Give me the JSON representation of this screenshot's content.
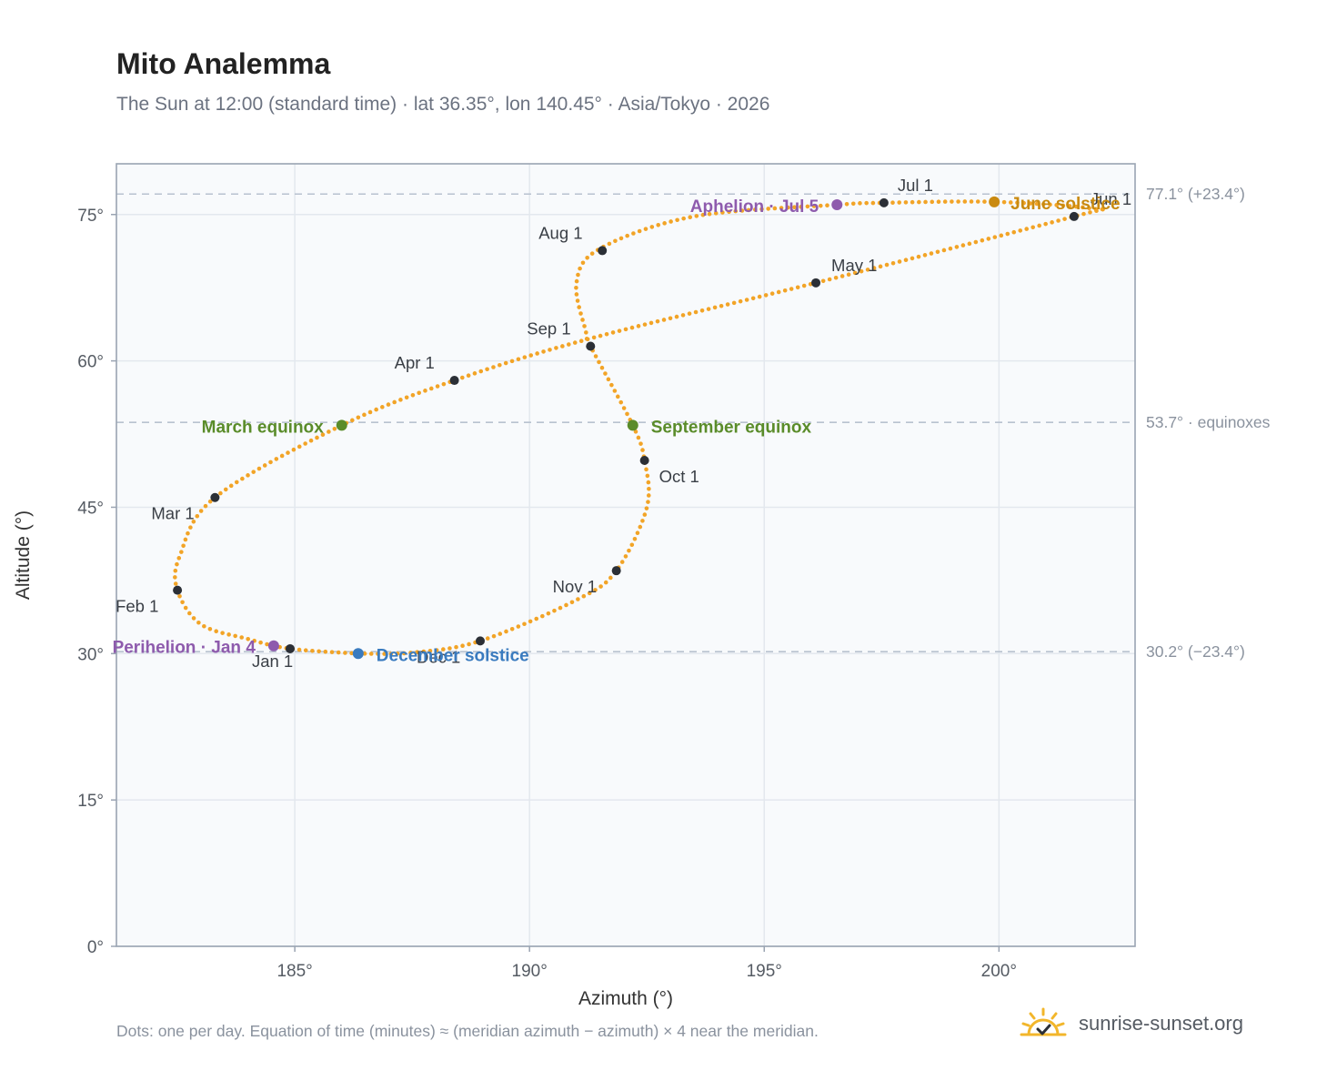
{
  "title": "Mito Analemma",
  "subtitle": "The Sun at 12:00 (standard time) · lat 36.35°, lon 140.45° · Asia/Tokyo · 2026",
  "footnote": "Dots: one per day. Equation of time (minutes) ≈ (meridian azimuth − azimuth) × 4 near the meridian.",
  "brand": {
    "name": "sunrise-sunset.org",
    "logo_icon": "sun-check-icon"
  },
  "colors": {
    "path": "#f2a427",
    "month_marker": "#2b2f36",
    "equinox": "#5a8c2a",
    "june_solstice": "#c98a10",
    "december_solstice": "#3a7bbf",
    "apsis": "#8e5bad",
    "reference_line": "#b8c2cf",
    "plot_background": "#f8fafc"
  },
  "chart_data": {
    "type": "scatter",
    "xlabel": "Azimuth (°)",
    "ylabel": "Altitude (°)",
    "xlim": [
      181.2,
      202.9
    ],
    "ylim": [
      0,
      80.2
    ],
    "xticks": [
      185,
      190,
      195,
      200
    ],
    "xtick_labels": [
      "185°",
      "190°",
      "195°",
      "200°"
    ],
    "yticks": [
      0,
      15,
      30,
      45,
      60,
      75
    ],
    "ytick_labels": [
      "0°",
      "15°",
      "30°",
      "45°",
      "60°",
      "75°"
    ],
    "grid": true,
    "reference_lines": [
      {
        "y": 77.1,
        "label": "77.1° (+23.4°)"
      },
      {
        "y": 53.7,
        "label": "53.7° · equinoxes"
      },
      {
        "y": 30.2,
        "label": "30.2° (−23.4°)"
      }
    ],
    "series": [
      {
        "type": "line",
        "points_per_segment_note": "one dot per day",
        "path_keypoints": [
          [
            186.35,
            30.0
          ],
          [
            184.9,
            30.5
          ],
          [
            184.0,
            31.5
          ],
          [
            183.0,
            33.0
          ],
          [
            182.5,
            36.5
          ],
          [
            182.55,
            40.0
          ],
          [
            183.3,
            46.0
          ],
          [
            186.0,
            53.4
          ],
          [
            188.4,
            58.0
          ],
          [
            191.3,
            62.3
          ],
          [
            196.1,
            68.0
          ],
          [
            201.6,
            74.8
          ],
          [
            202.0,
            75.6
          ],
          [
            199.9,
            76.3
          ],
          [
            197.55,
            76.2
          ],
          [
            196.55,
            76.0
          ],
          [
            193.5,
            74.8
          ],
          [
            191.5,
            71.5
          ],
          [
            191.0,
            68.0
          ],
          [
            191.2,
            63.0
          ],
          [
            191.3,
            61.5
          ],
          [
            192.2,
            53.4
          ],
          [
            192.45,
            49.8
          ],
          [
            192.5,
            45.0
          ],
          [
            191.85,
            38.5
          ],
          [
            191.0,
            35.5
          ],
          [
            188.95,
            31.3
          ],
          [
            187.5,
            30.1
          ],
          [
            186.35,
            30.0
          ]
        ]
      }
    ],
    "month_markers": [
      {
        "label": "Jan 1",
        "x": 184.9,
        "y": 30.5
      },
      {
        "label": "Feb 1",
        "x": 182.5,
        "y": 36.5
      },
      {
        "label": "Mar 1",
        "x": 183.3,
        "y": 46.0
      },
      {
        "label": "Apr 1",
        "x": 188.4,
        "y": 58.0
      },
      {
        "label": "May 1",
        "x": 196.1,
        "y": 68.0
      },
      {
        "label": "Jun 1",
        "x": 201.6,
        "y": 74.8
      },
      {
        "label": "Jul 1",
        "x": 197.55,
        "y": 76.2
      },
      {
        "label": "Aug 1",
        "x": 191.55,
        "y": 71.3
      },
      {
        "label": "Sep 1",
        "x": 191.3,
        "y": 61.5
      },
      {
        "label": "Oct 1",
        "x": 192.45,
        "y": 49.8
      },
      {
        "label": "Nov 1",
        "x": 191.85,
        "y": 38.5
      },
      {
        "label": "Dec 1",
        "x": 188.95,
        "y": 31.3
      }
    ],
    "events": [
      {
        "label": "March equinox",
        "x": 186.0,
        "y": 53.4,
        "kind": "equinox"
      },
      {
        "label": "September equinox",
        "x": 192.2,
        "y": 53.4,
        "kind": "equinox"
      },
      {
        "label": "June solstice",
        "x": 199.9,
        "y": 76.3,
        "kind": "june_solstice"
      },
      {
        "label": "December solstice",
        "x": 186.35,
        "y": 30.0,
        "kind": "december_solstice"
      },
      {
        "label": "Perihelion · Jan 4",
        "x": 184.55,
        "y": 30.8,
        "kind": "apsis"
      },
      {
        "label": "Aphelion · Jul 5",
        "x": 196.55,
        "y": 76.0,
        "kind": "apsis"
      }
    ]
  }
}
